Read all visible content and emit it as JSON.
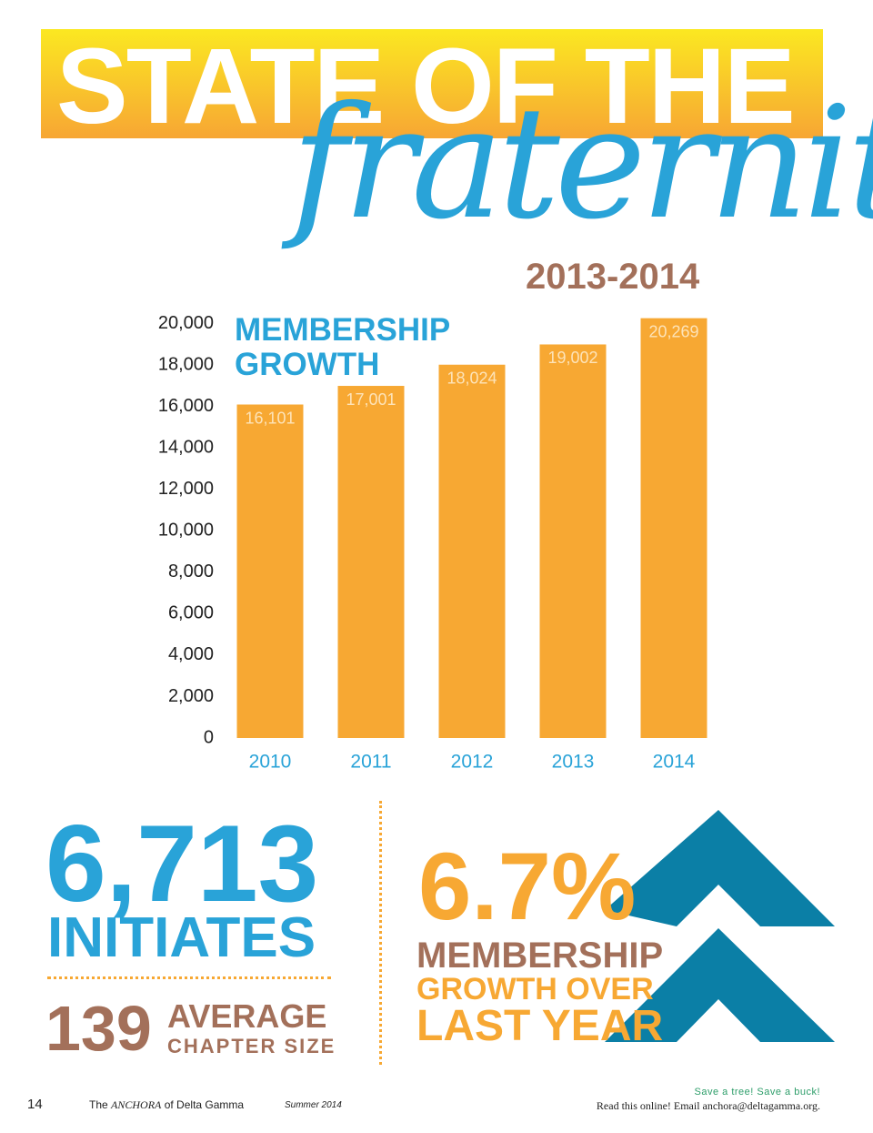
{
  "header": {
    "title": "STATE OF THE",
    "script_title": "fraternity",
    "years": "2013-2014"
  },
  "chart_data": {
    "type": "bar",
    "title": "MEMBERSHIP GROWTH",
    "categories": [
      "2010",
      "2011",
      "2012",
      "2013",
      "2014"
    ],
    "values": [
      16101,
      17001,
      18024,
      19002,
      20269
    ],
    "value_labels": [
      "16,101",
      "17,001",
      "18,024",
      "19,002",
      "20,269"
    ],
    "color": "#f7a833",
    "ylim": [
      0,
      21000
    ],
    "yticks": [
      0,
      {
        "value": 2000,
        "label": "2,000"
      },
      {
        "value": 4000,
        "label": "4,000"
      },
      {
        "value": 6000,
        "label": "6,000"
      },
      {
        "value": 8000,
        "label": "8,000"
      },
      {
        "value": 10000,
        "label": "10,000"
      },
      {
        "value": 12000,
        "label": "12,000"
      },
      {
        "value": 14000,
        "label": "14,000"
      },
      {
        "value": 16000,
        "label": "16,000"
      },
      {
        "value": 18000,
        "label": "18,000"
      },
      {
        "value": 20000,
        "label": "20,000"
      }
    ],
    "grid": false
  },
  "stats": {
    "initiates_number": "6,713",
    "initiates_label": "INITIATES",
    "chapter_number": "139",
    "chapter_label_1": "AVERAGE",
    "chapter_label_2": "CHAPTER SIZE",
    "growth_number": "6.7%",
    "growth_label_1": "MEMBERSHIP",
    "growth_label_2": "GROWTH OVER",
    "growth_label_3": "LAST YEAR"
  },
  "footer": {
    "page": "14",
    "pub_1": "The",
    "pub_2": "ANCHORA",
    "pub_3": "of Delta Gamma",
    "issue": "Summer 2014",
    "save": "Save a tree! Save a buck!",
    "online": "Read this online! Email anchora@deltagamma.org."
  }
}
